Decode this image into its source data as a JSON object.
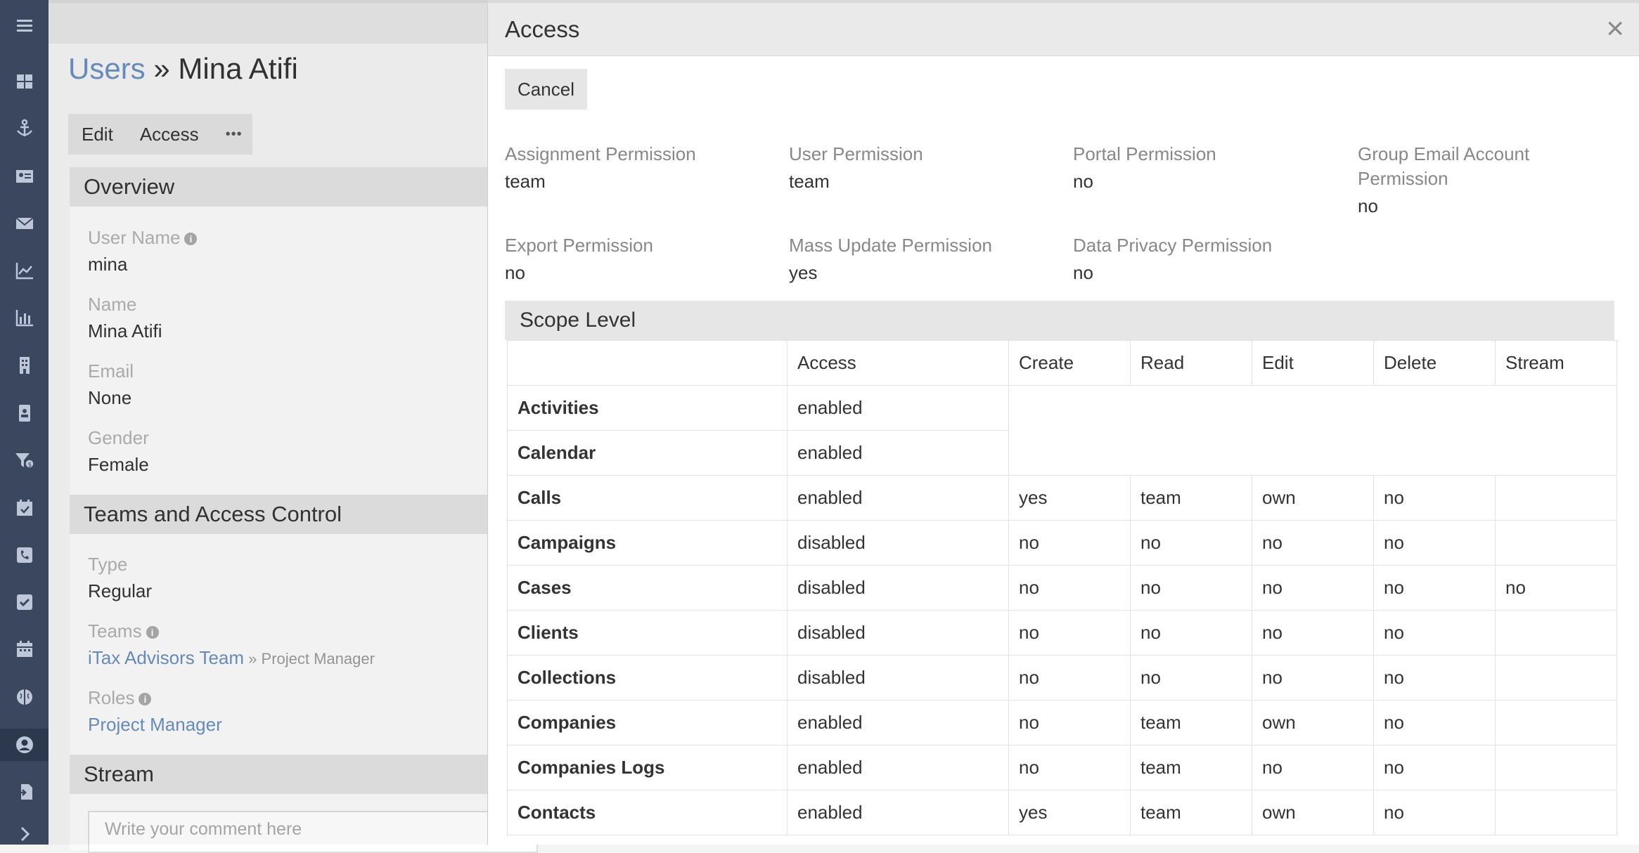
{
  "sidebar": {
    "icons": [
      "menu-icon",
      "dashboard-icon",
      "anchor-icon",
      "contact-card-icon",
      "email-icon",
      "line-chart-icon",
      "bar-chart-icon",
      "building-icon",
      "address-book-icon",
      "funnel-dollar-icon",
      "calendar-check-icon",
      "phone-icon",
      "task-check-icon",
      "calendar-icon",
      "brain-icon",
      "user-circle-icon",
      "import-icon",
      "chevron-right-icon"
    ],
    "active": "user-circle-icon"
  },
  "background": {
    "breadcrumb_link": "Users",
    "breadcrumb_sep": " » ",
    "breadcrumb_current": "Mina Atifi",
    "buttons": {
      "edit": "Edit",
      "access": "Access",
      "more": "•••"
    },
    "overview": {
      "title": "Overview",
      "user_name_label": "User Name",
      "user_name": "mina",
      "name_label": "Name",
      "name": "Mina Atifi",
      "email_label": "Email",
      "email": "None",
      "gender_label": "Gender",
      "gender": "Female"
    },
    "teams": {
      "title": "Teams and Access Control",
      "type_label": "Type",
      "type": "Regular",
      "teams_label": "Teams",
      "team_link": "iTax Advisors Team",
      "team_role": " » Project Manager",
      "roles_label": "Roles",
      "role_link": "Project Manager"
    },
    "stream": {
      "title": "Stream",
      "comment_placeholder": "Write your comment here"
    }
  },
  "modal": {
    "title": "Access",
    "close": "×",
    "cancel": "Cancel",
    "permissions": [
      {
        "label": "Assignment Permission",
        "value": "team"
      },
      {
        "label": "User Permission",
        "value": "team"
      },
      {
        "label": "Portal Permission",
        "value": "no"
      },
      {
        "label": "Group Email Account Permission",
        "value": "no"
      },
      {
        "label": "Export Permission",
        "value": "no"
      },
      {
        "label": "Mass Update Permission",
        "value": "yes"
      },
      {
        "label": "Data Privacy Permission",
        "value": "no"
      }
    ],
    "scope_title": "Scope Level",
    "columns": [
      "",
      "Access",
      "Create",
      "Read",
      "Edit",
      "Delete",
      "Stream"
    ],
    "rows": [
      {
        "name": "Activities",
        "access": "enabled",
        "create": "",
        "read": "",
        "edit": "",
        "delete": "",
        "stream": ""
      },
      {
        "name": "Calendar",
        "access": "enabled",
        "create": "",
        "read": "",
        "edit": "",
        "delete": "",
        "stream": ""
      },
      {
        "name": "Calls",
        "access": "enabled",
        "create": "yes",
        "read": "team",
        "edit": "own",
        "delete": "no",
        "stream": ""
      },
      {
        "name": "Campaigns",
        "access": "disabled",
        "create": "no",
        "read": "no",
        "edit": "no",
        "delete": "no",
        "stream": ""
      },
      {
        "name": "Cases",
        "access": "disabled",
        "create": "no",
        "read": "no",
        "edit": "no",
        "delete": "no",
        "stream": "no"
      },
      {
        "name": "Clients",
        "access": "disabled",
        "create": "no",
        "read": "no",
        "edit": "no",
        "delete": "no",
        "stream": ""
      },
      {
        "name": "Collections",
        "access": "disabled",
        "create": "no",
        "read": "no",
        "edit": "no",
        "delete": "no",
        "stream": ""
      },
      {
        "name": "Companies",
        "access": "enabled",
        "create": "no",
        "read": "team",
        "edit": "own",
        "delete": "no",
        "stream": ""
      },
      {
        "name": "Companies Logs",
        "access": "enabled",
        "create": "no",
        "read": "team",
        "edit": "no",
        "delete": "no",
        "stream": ""
      },
      {
        "name": "Contacts",
        "access": "enabled",
        "create": "yes",
        "read": "team",
        "edit": "own",
        "delete": "no",
        "stream": ""
      }
    ],
    "value_colors": {
      "enabled": "#5cb82b",
      "yes": "#5cb82b",
      "disabled": "#e02d2d",
      "no": "#e02d2d",
      "team": "#b49a00",
      "own": "#d19b0b"
    }
  }
}
